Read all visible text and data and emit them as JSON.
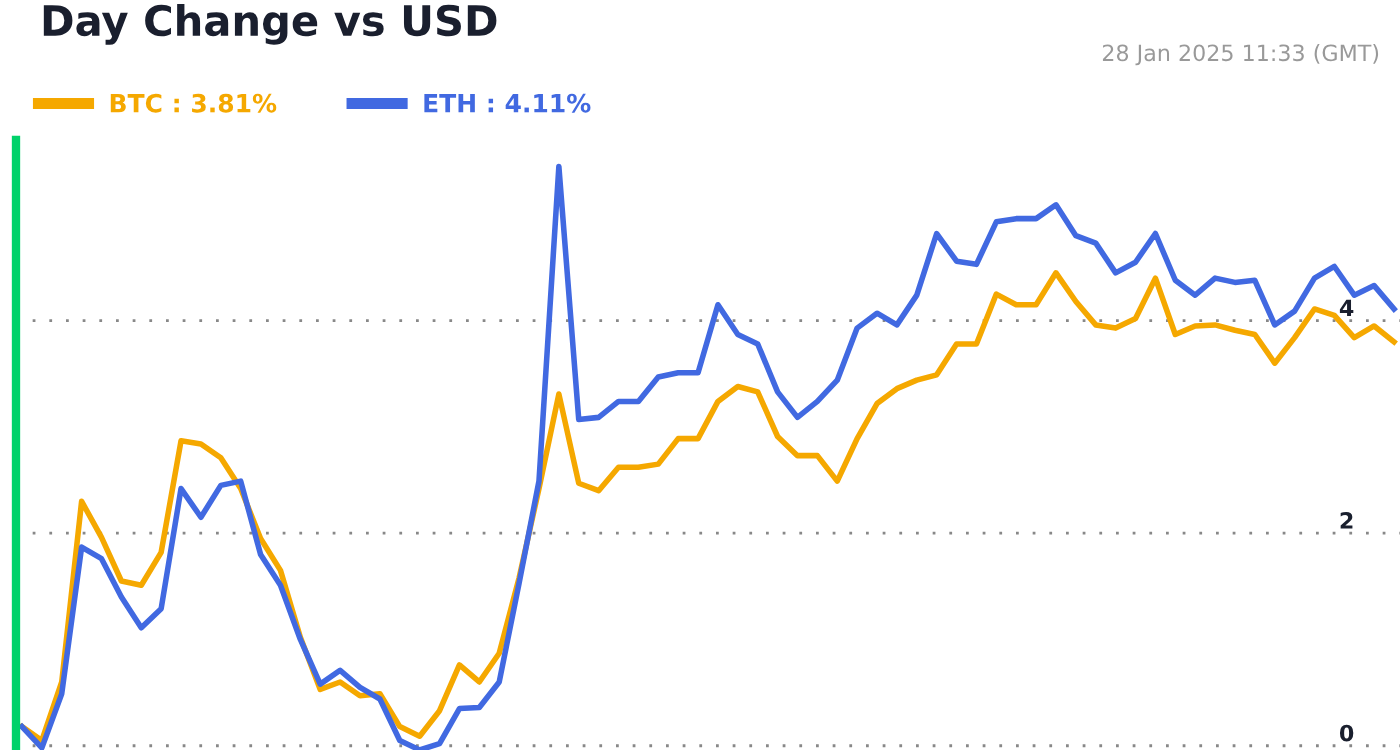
{
  "chart_data": {
    "type": "line",
    "title": "Day Change vs USD",
    "annotations": [
      "28 Jan 2025 11:33 (GMT)"
    ],
    "categories": [
      null,
      null,
      null,
      null,
      null,
      null,
      null,
      null,
      null,
      null,
      null,
      null,
      null,
      null,
      null,
      null,
      null,
      null,
      null,
      null,
      null,
      null,
      null,
      null,
      null,
      null,
      null,
      null,
      null,
      null,
      null,
      null,
      null,
      null,
      null,
      null,
      null,
      null,
      null,
      null,
      null,
      null,
      null,
      null,
      null,
      null,
      null,
      null,
      null,
      null,
      null,
      null,
      null,
      null,
      null,
      null,
      null,
      null,
      null,
      null,
      null,
      null,
      null,
      null,
      null,
      null,
      null,
      null,
      null,
      null
    ],
    "series": [
      {
        "name": "BTC : 3.81%",
        "color": "#f5a800",
        "values": [
          0.18,
          0.05,
          0.6,
          2.3,
          1.96,
          1.55,
          1.51,
          1.82,
          2.87,
          2.84,
          2.71,
          2.42,
          1.95,
          1.65,
          1.02,
          0.53,
          0.6,
          0.47,
          0.49,
          0.18,
          0.09,
          0.33,
          0.76,
          0.6,
          0.87,
          1.58,
          2.42,
          3.31,
          2.47,
          2.4,
          2.62,
          2.62,
          2.65,
          2.89,
          2.89,
          3.24,
          3.38,
          3.33,
          2.91,
          2.73,
          2.73,
          2.49,
          2.89,
          3.22,
          3.36,
          3.44,
          3.49,
          3.78,
          3.78,
          4.25,
          4.15,
          4.15,
          4.45,
          4.18,
          3.96,
          3.93,
          4.02,
          4.4,
          3.87,
          3.95,
          3.96,
          3.91,
          3.87,
          3.6,
          3.84,
          4.11,
          4.05,
          3.84,
          3.95,
          3.8
        ]
      },
      {
        "name": "ETH : 4.11%",
        "color": "#4169e1",
        "values": [
          0.18,
          -0.02,
          0.49,
          1.87,
          1.76,
          1.4,
          1.11,
          1.29,
          2.42,
          2.15,
          2.45,
          2.49,
          1.8,
          1.51,
          1.0,
          0.58,
          0.71,
          0.55,
          0.44,
          0.05,
          -0.04,
          0.02,
          0.35,
          0.36,
          0.6,
          1.53,
          2.49,
          5.45,
          3.07,
          3.09,
          3.24,
          3.24,
          3.47,
          3.51,
          3.51,
          4.15,
          3.87,
          3.78,
          3.33,
          3.09,
          3.24,
          3.44,
          3.93,
          4.07,
          3.96,
          4.24,
          4.82,
          4.56,
          4.53,
          4.93,
          4.96,
          4.96,
          5.09,
          4.8,
          4.73,
          4.45,
          4.55,
          4.82,
          4.38,
          4.24,
          4.4,
          4.36,
          4.38,
          3.96,
          4.09,
          4.4,
          4.51,
          4.24,
          4.33,
          4.11
        ]
      }
    ],
    "ylim": [
      -0.04,
      5.7
    ],
    "yticks": [
      0,
      2,
      4
    ],
    "grid": "y",
    "legend": "top left",
    "tick_labels": "y",
    "line_style": "solid"
  }
}
